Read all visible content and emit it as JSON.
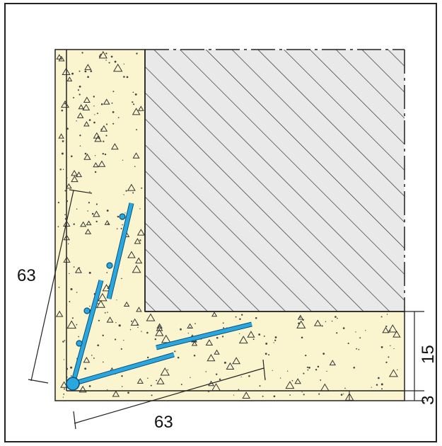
{
  "dimensions": {
    "diagonal_vertical": "63",
    "diagonal_horizontal": "63",
    "layer_thickness": "15",
    "base_thickness": "3"
  },
  "colors": {
    "concrete": "#fbf5cf",
    "hatch_fill": "#e9e9e9",
    "rebar": "#29a8e0",
    "rebar_outline": "#0e4f78",
    "line": "#222222"
  },
  "icons": {
    "aggregate": "triangle-icon",
    "rebar_dot": "circle-icon"
  }
}
